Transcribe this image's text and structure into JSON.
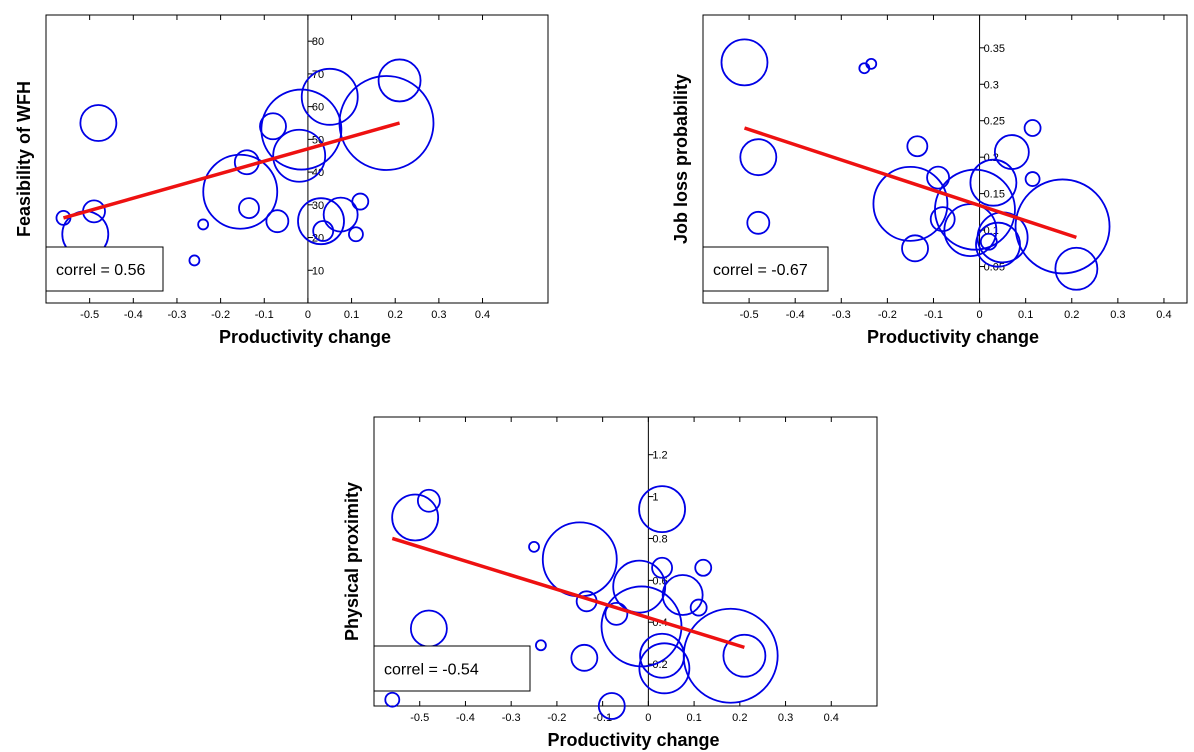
{
  "colors": {
    "bubble": "#0000e6",
    "fit_line": "#ee1111",
    "axis": "#000000",
    "background": "#ffffff"
  },
  "chart_data": [
    {
      "type": "scatter",
      "style": "bubble",
      "xlabel": "Productivity change",
      "ylabel": "Feasibility of WFH",
      "xlim": [
        -0.6,
        0.55
      ],
      "ylim": [
        0,
        88
      ],
      "xticks": [
        -0.5,
        -0.4,
        -0.3,
        -0.2,
        -0.1,
        0,
        0.1,
        0.2,
        0.3,
        0.4
      ],
      "xtick_labels": [
        "-0.5",
        "-0.4",
        "-0.3",
        "-0.2",
        "-0.1",
        "0",
        "0.1",
        "0.2",
        "0.3",
        "0.4"
      ],
      "yticks": [
        10,
        20,
        30,
        40,
        50,
        60,
        70,
        80
      ],
      "ytick_labels": [
        "10",
        "20",
        "30",
        "40",
        "50",
        "60",
        "70",
        "80"
      ],
      "annotation": "correl = 0.56",
      "fit_line": {
        "x": [
          -0.56,
          0.21
        ],
        "y": [
          26,
          55
        ]
      },
      "points": [
        {
          "x": -0.56,
          "y": 26,
          "size": 7
        },
        {
          "x": -0.51,
          "y": 21,
          "size": 23
        },
        {
          "x": -0.49,
          "y": 28,
          "size": 11
        },
        {
          "x": -0.48,
          "y": 55,
          "size": 18
        },
        {
          "x": -0.26,
          "y": 13,
          "size": 5
        },
        {
          "x": -0.24,
          "y": 24,
          "size": 5
        },
        {
          "x": -0.155,
          "y": 34,
          "size": 37
        },
        {
          "x": -0.14,
          "y": 43,
          "size": 12
        },
        {
          "x": -0.135,
          "y": 29,
          "size": 10
        },
        {
          "x": -0.08,
          "y": 54,
          "size": 13
        },
        {
          "x": -0.07,
          "y": 25,
          "size": 11
        },
        {
          "x": -0.02,
          "y": 45,
          "size": 26
        },
        {
          "x": -0.015,
          "y": 53,
          "size": 40
        },
        {
          "x": 0.03,
          "y": 25,
          "size": 23
        },
        {
          "x": 0.035,
          "y": 22,
          "size": 10
        },
        {
          "x": 0.05,
          "y": 63,
          "size": 28
        },
        {
          "x": 0.075,
          "y": 27,
          "size": 17
        },
        {
          "x": 0.11,
          "y": 21,
          "size": 7
        },
        {
          "x": 0.12,
          "y": 31,
          "size": 8
        },
        {
          "x": 0.18,
          "y": 55,
          "size": 47
        },
        {
          "x": 0.21,
          "y": 68,
          "size": 21
        }
      ]
    },
    {
      "type": "scatter",
      "style": "bubble",
      "xlabel": "Productivity change",
      "ylabel": "Job loss probability",
      "xlim": [
        -0.6,
        0.45
      ],
      "ylim": [
        0,
        0.395
      ],
      "xticks": [
        -0.5,
        -0.4,
        -0.3,
        -0.2,
        -0.1,
        0,
        0.1,
        0.2,
        0.3,
        0.4
      ],
      "xtick_labels": [
        "-0.5",
        "-0.4",
        "-0.3",
        "-0.2",
        "-0.1",
        "0",
        "0.1",
        "0.2",
        "0.3",
        "0.4"
      ],
      "yticks": [
        0.05,
        0.1,
        0.15,
        0.2,
        0.25,
        0.3,
        0.35
      ],
      "ytick_labels": [
        "0.05",
        "0.1",
        "0.15",
        "0.2",
        "0.25",
        "0.3",
        "0.35"
      ],
      "annotation": "correl = -0.67",
      "fit_line": {
        "x": [
          -0.51,
          0.21
        ],
        "y": [
          0.24,
          0.09
        ]
      },
      "points": [
        {
          "x": -0.51,
          "y": 0.33,
          "size": 23
        },
        {
          "x": -0.48,
          "y": 0.2,
          "size": 18
        },
        {
          "x": -0.48,
          "y": 0.11,
          "size": 11
        },
        {
          "x": -0.25,
          "y": 0.322,
          "size": 5
        },
        {
          "x": -0.235,
          "y": 0.328,
          "size": 5
        },
        {
          "x": -0.15,
          "y": 0.136,
          "size": 37
        },
        {
          "x": -0.135,
          "y": 0.215,
          "size": 10
        },
        {
          "x": -0.14,
          "y": 0.075,
          "size": 13
        },
        {
          "x": -0.09,
          "y": 0.172,
          "size": 11
        },
        {
          "x": -0.08,
          "y": 0.115,
          "size": 12
        },
        {
          "x": -0.02,
          "y": 0.1,
          "size": 26
        },
        {
          "x": -0.01,
          "y": 0.128,
          "size": 40
        },
        {
          "x": 0.02,
          "y": 0.084,
          "size": 8
        },
        {
          "x": 0.03,
          "y": 0.165,
          "size": 23
        },
        {
          "x": 0.04,
          "y": 0.08,
          "size": 22
        },
        {
          "x": 0.07,
          "y": 0.207,
          "size": 17
        },
        {
          "x": 0.05,
          "y": 0.09,
          "size": 25
        },
        {
          "x": 0.115,
          "y": 0.24,
          "size": 8
        },
        {
          "x": 0.115,
          "y": 0.17,
          "size": 7
        },
        {
          "x": 0.18,
          "y": 0.105,
          "size": 47
        },
        {
          "x": 0.21,
          "y": 0.047,
          "size": 21
        }
      ]
    },
    {
      "type": "scatter",
      "style": "bubble",
      "xlabel": "Productivity change",
      "ylabel": "Physical proximity",
      "xlim": [
        -0.6,
        0.5
      ],
      "ylim": [
        0,
        1.38
      ],
      "xticks": [
        -0.5,
        -0.4,
        -0.3,
        -0.2,
        -0.1,
        0,
        0.1,
        0.2,
        0.3,
        0.4
      ],
      "xtick_labels": [
        "-0.5",
        "-0.4",
        "-0.3",
        "-0.2",
        "-0.1",
        "0",
        "0.1",
        "0.2",
        "0.3",
        "0.4"
      ],
      "yticks": [
        0.2,
        0.4,
        0.6,
        0.8,
        1,
        1.2
      ],
      "ytick_labels": [
        "0.2",
        "0.4",
        "0.6",
        "0.8",
        "1",
        "1.2"
      ],
      "annotation": "correl = -0.54",
      "fit_line": {
        "x": [
          -0.56,
          0.21
        ],
        "y": [
          0.8,
          0.28
        ]
      },
      "points": [
        {
          "x": -0.56,
          "y": 0.03,
          "size": 7
        },
        {
          "x": -0.51,
          "y": 0.9,
          "size": 23
        },
        {
          "x": -0.48,
          "y": 0.98,
          "size": 11
        },
        {
          "x": -0.48,
          "y": 0.37,
          "size": 18
        },
        {
          "x": -0.25,
          "y": 0.76,
          "size": 5
        },
        {
          "x": -0.235,
          "y": 0.29,
          "size": 5
        },
        {
          "x": -0.15,
          "y": 0.7,
          "size": 37
        },
        {
          "x": -0.14,
          "y": 0.23,
          "size": 13
        },
        {
          "x": -0.135,
          "y": 0.5,
          "size": 10
        },
        {
          "x": -0.08,
          "y": 0.0,
          "size": 13
        },
        {
          "x": -0.07,
          "y": 0.44,
          "size": 11
        },
        {
          "x": -0.02,
          "y": 0.57,
          "size": 26
        },
        {
          "x": -0.015,
          "y": 0.38,
          "size": 40
        },
        {
          "x": 0.03,
          "y": 0.94,
          "size": 23
        },
        {
          "x": 0.03,
          "y": 0.24,
          "size": 22
        },
        {
          "x": 0.035,
          "y": 0.18,
          "size": 25
        },
        {
          "x": 0.03,
          "y": 0.66,
          "size": 10
        },
        {
          "x": 0.075,
          "y": 0.53,
          "size": 20
        },
        {
          "x": 0.11,
          "y": 0.47,
          "size": 8
        },
        {
          "x": 0.12,
          "y": 0.66,
          "size": 8
        },
        {
          "x": 0.18,
          "y": 0.24,
          "size": 47
        },
        {
          "x": 0.21,
          "y": 0.24,
          "size": 21
        }
      ]
    }
  ]
}
